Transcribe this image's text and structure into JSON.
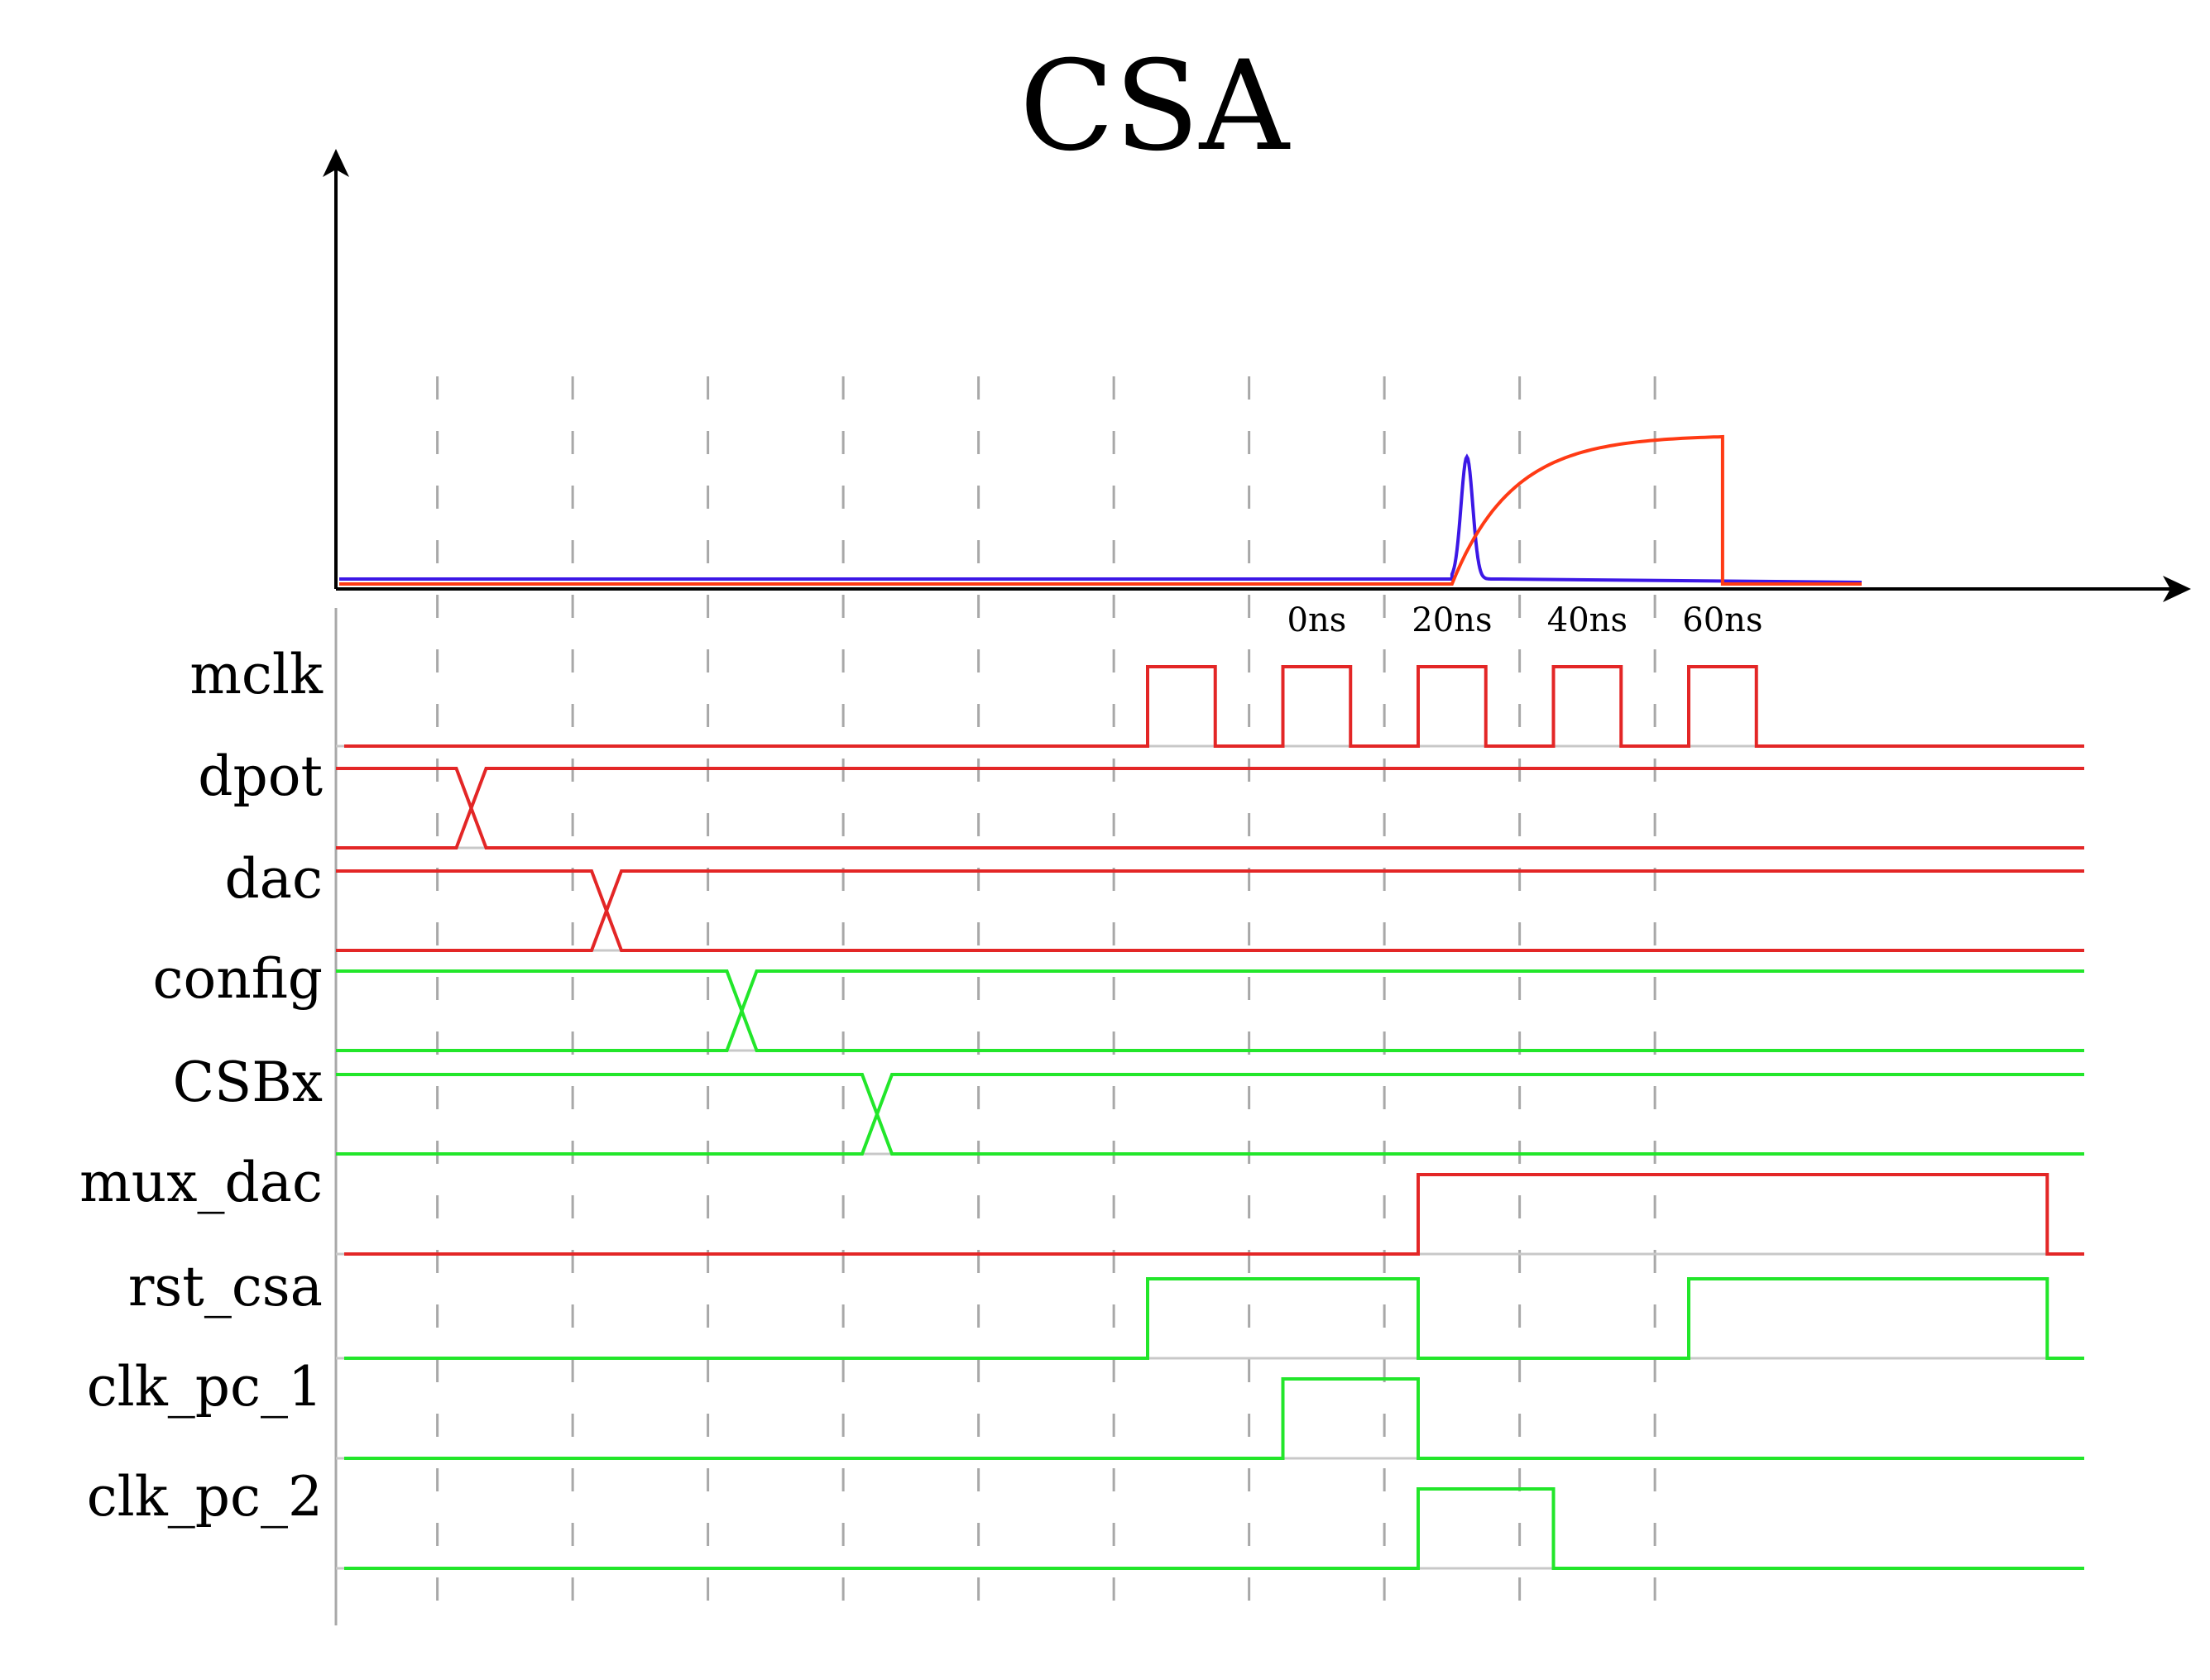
{
  "title": "CSA",
  "time_labels": [
    "0ns",
    "20ns",
    "40ns",
    "60ns"
  ],
  "colors": {
    "red": "#e32626",
    "green": "#22e62a",
    "blue": "#3c18e6",
    "orange": "#ff3a14",
    "grid": "#a8a8a8",
    "axis": "#000000",
    "baseline": "#c8c8c8"
  },
  "signals": [
    {
      "name": "mclk",
      "color": "red",
      "kind": "digital",
      "high_intervals": [
        [
          6.25,
          6.75
        ],
        [
          7.25,
          7.75
        ],
        [
          8.25,
          8.75
        ],
        [
          9.25,
          9.75
        ],
        [
          10.25,
          10.75
        ]
      ]
    },
    {
      "name": "dpot",
      "color": "red",
      "kind": "bus",
      "transition": 1.25
    },
    {
      "name": "dac",
      "color": "red",
      "kind": "bus",
      "transition": 2.25
    },
    {
      "name": "config",
      "color": "green",
      "kind": "bus",
      "transition": 3.25
    },
    {
      "name": "CSBx",
      "color": "green",
      "kind": "bus",
      "transition": 4.25
    },
    {
      "name": "mux_dac",
      "color": "red",
      "kind": "digital",
      "high_intervals": [
        [
          8.25,
          12.9
        ]
      ]
    },
    {
      "name": "rst_csa",
      "color": "green",
      "kind": "digital",
      "high_intervals": [
        [
          6.25,
          8.25
        ],
        [
          10.25,
          12.9
        ]
      ]
    },
    {
      "name": "clk_pc_1",
      "color": "green",
      "kind": "digital",
      "high_intervals": [
        [
          7.25,
          8.25
        ]
      ]
    },
    {
      "name": "clk_pc_2",
      "color": "green",
      "kind": "digital",
      "high_intervals": [
        [
          8.25,
          9.25
        ]
      ]
    }
  ],
  "analog": {
    "blue_pulse": {
      "color": "blue",
      "start": 8.25,
      "peak": 8.36,
      "peak_level": 0.82
    },
    "integrator": {
      "color": "orange",
      "start": 8.25,
      "end": 10.25,
      "plateau_level": 1.0
    }
  }
}
